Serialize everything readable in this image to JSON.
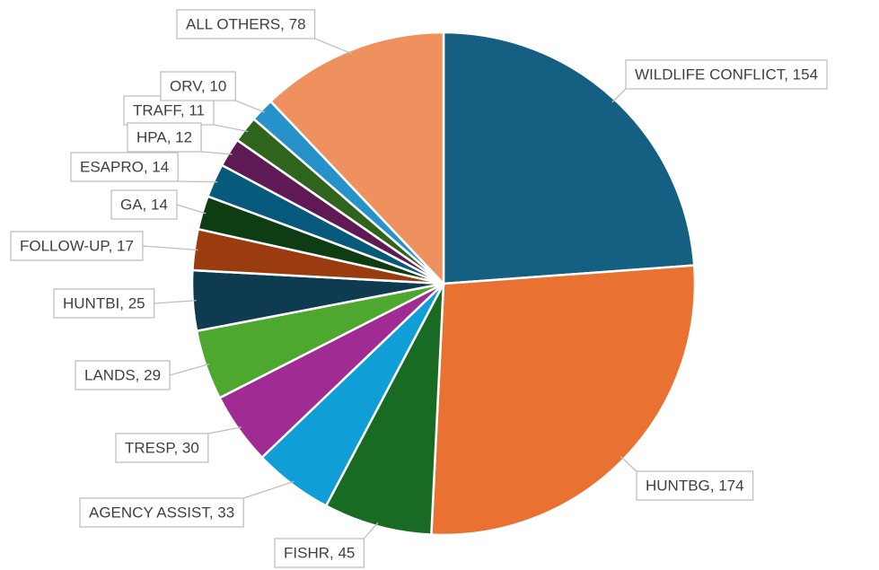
{
  "chart_data": {
    "type": "pie",
    "categories": [
      "WILDLIFE CONFLICT",
      "HUNTBG",
      "FISHR",
      "AGENCY ASSIST",
      "TRESP",
      "LANDS",
      "HUNTBI",
      "FOLLOW-UP",
      "GA",
      "ESAPRO",
      "HPA",
      "TRAFF",
      "ORV",
      "ALL OTHERS"
    ],
    "values": [
      154,
      174,
      45,
      33,
      30,
      29,
      25,
      17,
      14,
      14,
      12,
      11,
      10,
      78
    ],
    "value_labels": [
      "WILDLIFE CONFLICT, 154",
      "HUNTBG, 174",
      "FISHR, 45",
      "AGENCY ASSIST, 33",
      "TRESP, 30",
      "LANDS, 29",
      "HUNTBI, 25",
      "FOLLOW-UP, 17",
      "GA, 14",
      "ESAPRO, 14",
      "HPA, 12",
      "TRAFF, 11",
      "ORV, 10",
      "ALL OTHERS, 78"
    ],
    "colors": [
      "#156082",
      "#e97132",
      "#196b24",
      "#0f9ed5",
      "#a02b93",
      "#4ea72e",
      "#0e3b4f",
      "#9a3c10",
      "#0e3d13",
      "#075a7c",
      "#5f1a55",
      "#2f641c",
      "#2792c9",
      "#ee915e"
    ]
  }
}
